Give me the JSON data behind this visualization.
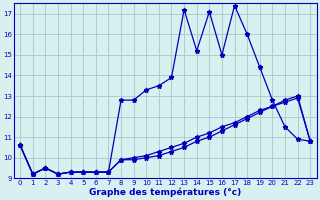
{
  "xlabel": "Graphe des températures (°c)",
  "bg_color": "#d8f0f0",
  "line_color": "#0000bb",
  "grid_color": "#aacece",
  "ylim": [
    9,
    17.5
  ],
  "xlim": [
    -0.5,
    23.5
  ],
  "yticks": [
    9,
    10,
    11,
    12,
    13,
    14,
    15,
    16,
    17
  ],
  "xticks": [
    0,
    1,
    2,
    3,
    4,
    5,
    6,
    7,
    8,
    9,
    10,
    11,
    12,
    13,
    14,
    15,
    16,
    17,
    18,
    19,
    20,
    21,
    22,
    23
  ],
  "line1_x": [
    0,
    1,
    2,
    3,
    4,
    5,
    6,
    7,
    8,
    9,
    10,
    11,
    12,
    13,
    14,
    15,
    16,
    17,
    18,
    19,
    20,
    21,
    22,
    23
  ],
  "line1_y": [
    10.6,
    9.2,
    9.5,
    9.2,
    9.3,
    9.3,
    9.3,
    9.3,
    9.9,
    10.0,
    10.1,
    10.3,
    10.5,
    10.7,
    11.0,
    11.2,
    11.5,
    11.7,
    12.0,
    12.3,
    12.5,
    12.7,
    12.9,
    10.8
  ],
  "line2_x": [
    0,
    1,
    2,
    3,
    4,
    5,
    6,
    7,
    8,
    9,
    10,
    11,
    12,
    13,
    14,
    15,
    16,
    17,
    18,
    19,
    20,
    21,
    22,
    23
  ],
  "line2_y": [
    10.6,
    9.2,
    9.5,
    9.2,
    9.3,
    9.3,
    9.3,
    9.3,
    12.8,
    12.8,
    13.3,
    13.5,
    13.9,
    17.2,
    15.2,
    17.1,
    15.0,
    17.4,
    16.0,
    14.4,
    12.8,
    11.5,
    10.9,
    10.8
  ],
  "line3_x": [
    0,
    1,
    2,
    3,
    4,
    5,
    6,
    7,
    8,
    9,
    10,
    11,
    12,
    13,
    14,
    15,
    16,
    17,
    18,
    19,
    20,
    21,
    22,
    23
  ],
  "line3_y": [
    10.6,
    9.2,
    9.5,
    9.2,
    9.3,
    9.3,
    9.3,
    9.3,
    9.9,
    9.9,
    10.0,
    10.1,
    10.3,
    10.5,
    10.8,
    11.0,
    11.3,
    11.6,
    11.9,
    12.2,
    12.5,
    12.8,
    13.0,
    10.8
  ],
  "marker": "*",
  "markersize": 3.5,
  "linewidth": 0.9
}
